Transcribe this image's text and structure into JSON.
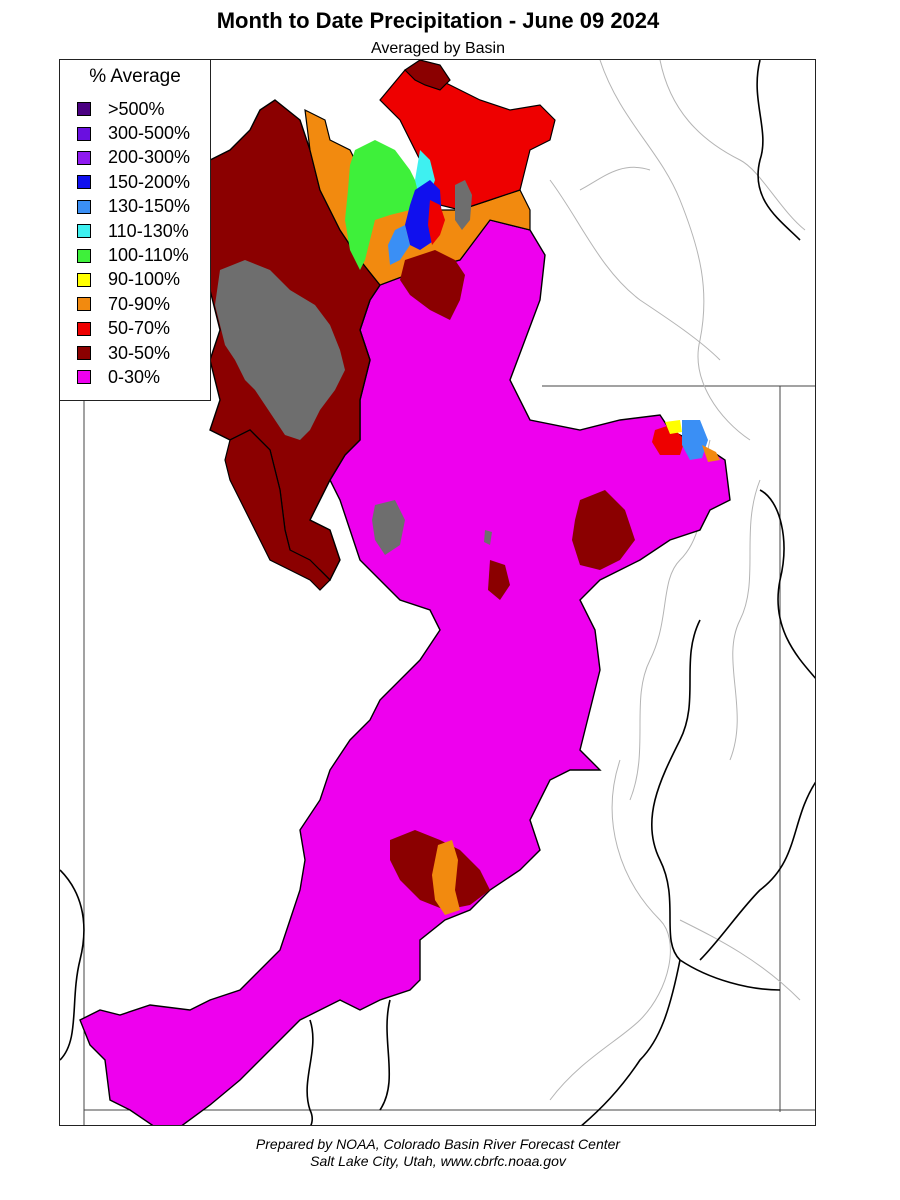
{
  "title": "Month to Date Precipitation - June 09 2024",
  "subtitle": "Averaged by Basin",
  "legend": {
    "title": "% Average",
    "items": [
      {
        "label": ">500%",
        "color": "#4b0082"
      },
      {
        "label": "300-500%",
        "color": "#6a0fe0"
      },
      {
        "label": "200-300%",
        "color": "#8f1af0"
      },
      {
        "label": "150-200%",
        "color": "#1010ee"
      },
      {
        "label": "130-150%",
        "color": "#3a8ff5"
      },
      {
        "label": "110-130%",
        "color": "#3ef0f0"
      },
      {
        "label": "100-110%",
        "color": "#3ef03a"
      },
      {
        "label": "90-100%",
        "color": "#ffff00"
      },
      {
        "label": "70-90%",
        "color": "#f28a0f"
      },
      {
        "label": "50-70%",
        "color": "#ee0000"
      },
      {
        "label": "30-50%",
        "color": "#8b0000"
      },
      {
        "label": "0-30%",
        "color": "#ee00ee"
      }
    ]
  },
  "colors": {
    "lake": "#6e6e6e",
    "state_border": "#000000",
    "river": "#9a9a9a"
  },
  "footer": {
    "line1": "Prepared by NOAA, Colorado Basin River Forecast Center",
    "line2": "Salt Lake City, Utah, www.cbrfc.noaa.gov"
  }
}
